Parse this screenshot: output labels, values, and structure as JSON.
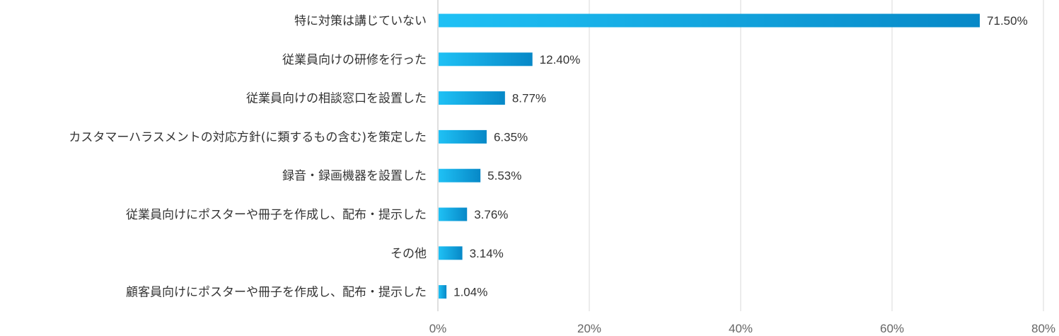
{
  "chart_data": {
    "type": "bar",
    "orientation": "horizontal",
    "categories": [
      "特に対策は講じていない",
      "従業員向けの研修を行った",
      "従業員向けの相談窓口を設置した",
      "カスタマーハラスメントの対応方針(に類するもの含む)を策定した",
      "録音・録画機器を設置した",
      "従業員向けにポスターや冊子を作成し、配布・提示した",
      "その他",
      "顧客員向けにポスターや冊子を作成し、配布・提示した"
    ],
    "values": [
      71.5,
      12.4,
      8.77,
      6.35,
      5.53,
      3.76,
      3.14,
      1.04
    ],
    "value_labels": [
      "71.50%",
      "12.40%",
      "8.77%",
      "6.35%",
      "5.53%",
      "3.76%",
      "3.14%",
      "1.04%"
    ],
    "x_ticks": [
      0,
      20,
      40,
      60,
      80
    ],
    "x_tick_labels": [
      "0%",
      "20%",
      "40%",
      "60%",
      "80%"
    ],
    "xlim": [
      0,
      80
    ],
    "grid": true,
    "legend": "none",
    "title": "",
    "xlabel": "",
    "ylabel": "",
    "colors": {
      "bar_start": "#1fc1f5",
      "bar_end": "#0788c7",
      "grid": "#d9d9d9",
      "text": "#333333",
      "tick_text": "#666666"
    }
  }
}
